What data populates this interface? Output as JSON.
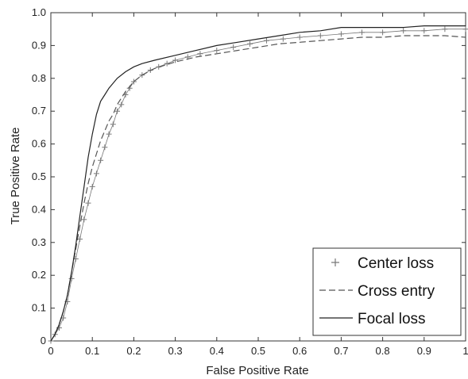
{
  "chart_data": {
    "type": "line",
    "title": "",
    "xlabel": "False Positive Rate",
    "ylabel": "True Positive Rate",
    "xlim": [
      0,
      1
    ],
    "ylim": [
      0,
      1
    ],
    "xticks": [
      "0",
      "0.1",
      "0.2",
      "0.3",
      "0.4",
      "0.5",
      "0.6",
      "0.7",
      "0.8",
      "0.9",
      "1"
    ],
    "yticks": [
      "0",
      "0.1",
      "0.2",
      "0.3",
      "0.4",
      "0.5",
      "0.6",
      "0.7",
      "0.8",
      "0.9",
      "1.0"
    ],
    "grid": false,
    "legend_position": "bottom-right",
    "series": [
      {
        "name": "Center loss",
        "style": "plus-markers",
        "color": "#777777",
        "x": [
          0,
          0.01,
          0.02,
          0.03,
          0.04,
          0.05,
          0.06,
          0.07,
          0.08,
          0.09,
          0.1,
          0.11,
          0.12,
          0.13,
          0.14,
          0.15,
          0.16,
          0.17,
          0.18,
          0.19,
          0.2,
          0.22,
          0.24,
          0.26,
          0.28,
          0.3,
          0.33,
          0.36,
          0.4,
          0.44,
          0.48,
          0.52,
          0.56,
          0.6,
          0.65,
          0.7,
          0.75,
          0.8,
          0.85,
          0.9,
          0.95,
          1.0
        ],
        "y": [
          0,
          0.02,
          0.04,
          0.07,
          0.12,
          0.19,
          0.25,
          0.31,
          0.37,
          0.42,
          0.47,
          0.51,
          0.55,
          0.59,
          0.63,
          0.66,
          0.7,
          0.72,
          0.75,
          0.77,
          0.79,
          0.81,
          0.825,
          0.835,
          0.845,
          0.855,
          0.865,
          0.875,
          0.885,
          0.895,
          0.905,
          0.915,
          0.92,
          0.925,
          0.93,
          0.935,
          0.94,
          0.94,
          0.945,
          0.945,
          0.95,
          0.95
        ]
      },
      {
        "name": "Cross entry",
        "style": "dashed",
        "color": "#555555",
        "x": [
          0,
          0.01,
          0.02,
          0.03,
          0.04,
          0.05,
          0.06,
          0.07,
          0.08,
          0.09,
          0.1,
          0.11,
          0.12,
          0.13,
          0.14,
          0.15,
          0.16,
          0.18,
          0.2,
          0.22,
          0.25,
          0.3,
          0.35,
          0.4,
          0.45,
          0.5,
          0.55,
          0.6,
          0.65,
          0.7,
          0.75,
          0.8,
          0.85,
          0.9,
          0.95,
          1.0
        ],
        "y": [
          0,
          0.02,
          0.05,
          0.09,
          0.14,
          0.21,
          0.28,
          0.35,
          0.42,
          0.48,
          0.53,
          0.57,
          0.61,
          0.64,
          0.67,
          0.69,
          0.72,
          0.76,
          0.79,
          0.81,
          0.83,
          0.85,
          0.865,
          0.875,
          0.885,
          0.895,
          0.905,
          0.91,
          0.915,
          0.92,
          0.925,
          0.925,
          0.93,
          0.93,
          0.93,
          0.925
        ]
      },
      {
        "name": "Focal loss",
        "style": "solid",
        "color": "#222222",
        "x": [
          0,
          0.01,
          0.02,
          0.03,
          0.04,
          0.05,
          0.06,
          0.07,
          0.08,
          0.09,
          0.1,
          0.11,
          0.12,
          0.13,
          0.14,
          0.16,
          0.18,
          0.2,
          0.22,
          0.25,
          0.3,
          0.35,
          0.4,
          0.45,
          0.5,
          0.55,
          0.6,
          0.65,
          0.7,
          0.75,
          0.8,
          0.85,
          0.9,
          0.95,
          1.0
        ],
        "y": [
          0,
          0.02,
          0.05,
          0.09,
          0.14,
          0.21,
          0.29,
          0.38,
          0.47,
          0.56,
          0.63,
          0.69,
          0.73,
          0.75,
          0.77,
          0.8,
          0.82,
          0.835,
          0.845,
          0.855,
          0.87,
          0.885,
          0.9,
          0.91,
          0.92,
          0.93,
          0.94,
          0.945,
          0.955,
          0.955,
          0.955,
          0.955,
          0.96,
          0.96,
          0.96
        ]
      }
    ]
  }
}
